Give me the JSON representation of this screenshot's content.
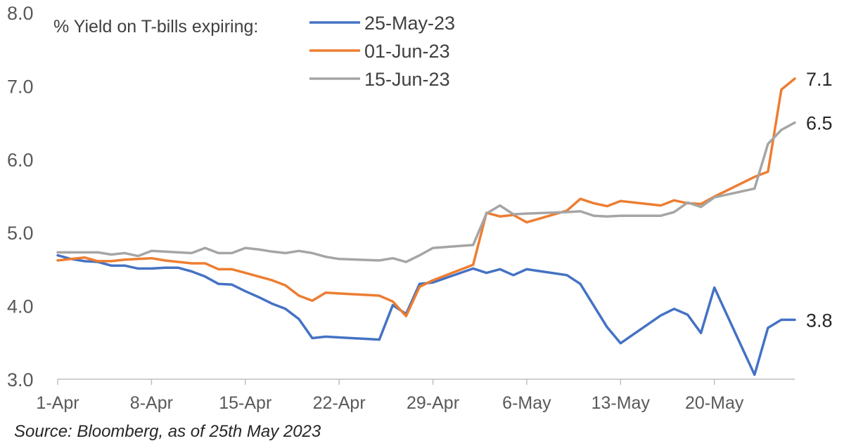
{
  "chart_data": {
    "type": "line",
    "legend_title": "% Yield on T-bills expiring:",
    "source": "Source: Bloomberg, as of 25th May 2023",
    "ylim": [
      3.0,
      8.0
    ],
    "yticks": [
      "3.0",
      "4.0",
      "5.0",
      "6.0",
      "7.0",
      "8.0"
    ],
    "ytick_values": [
      3.0,
      4.0,
      5.0,
      6.0,
      7.0,
      8.0
    ],
    "xlim": [
      1,
      56
    ],
    "xticks": [
      "1-Apr",
      "8-Apr",
      "15-Apr",
      "22-Apr",
      "29-Apr",
      "6-May",
      "13-May",
      "20-May"
    ],
    "xtick_values": [
      1,
      8,
      15,
      22,
      29,
      36,
      43,
      50
    ],
    "legend_position": "top",
    "grid": false,
    "series": [
      {
        "name": "25-May-23",
        "color": "#4472C4",
        "end_label": "3.8",
        "x": [
          1,
          2,
          3,
          4,
          5,
          6,
          7,
          8,
          9,
          10,
          11,
          12,
          13,
          14,
          15,
          16,
          17,
          18,
          19,
          20,
          21,
          22,
          25,
          26,
          27,
          28,
          29,
          32,
          33,
          34,
          35,
          36,
          39,
          40,
          42,
          43,
          46,
          47,
          48,
          49,
          50,
          53,
          54,
          55,
          56
        ],
        "y": [
          4.69,
          4.64,
          4.61,
          4.6,
          4.55,
          4.55,
          4.51,
          4.51,
          4.52,
          4.52,
          4.47,
          4.4,
          4.3,
          4.29,
          4.2,
          4.12,
          4.03,
          3.96,
          3.82,
          3.56,
          3.58,
          3.57,
          3.54,
          4.01,
          3.89,
          4.3,
          4.32,
          4.51,
          4.45,
          4.5,
          4.42,
          4.5,
          4.42,
          4.3,
          3.71,
          3.49,
          3.87,
          3.96,
          3.88,
          3.63,
          4.25,
          3.06,
          3.7,
          3.81,
          3.81
        ]
      },
      {
        "name": "01-Jun-23",
        "color": "#ED7D31",
        "end_label": "7.1",
        "x": [
          1,
          2,
          3,
          4,
          5,
          6,
          7,
          8,
          9,
          10,
          11,
          12,
          13,
          14,
          15,
          16,
          17,
          18,
          19,
          20,
          21,
          22,
          25,
          26,
          27,
          28,
          29,
          32,
          33,
          34,
          35,
          36,
          39,
          40,
          41,
          42,
          43,
          46,
          47,
          48,
          49,
          50,
          53,
          54,
          55,
          56
        ],
        "y": [
          4.62,
          4.64,
          4.66,
          4.61,
          4.61,
          4.63,
          4.64,
          4.65,
          4.62,
          4.6,
          4.58,
          4.58,
          4.5,
          4.5,
          4.45,
          4.4,
          4.35,
          4.28,
          4.14,
          4.07,
          4.18,
          4.17,
          4.14,
          4.06,
          3.86,
          4.26,
          4.35,
          4.56,
          5.27,
          5.22,
          5.24,
          5.14,
          5.3,
          5.46,
          5.4,
          5.36,
          5.43,
          5.37,
          5.44,
          5.4,
          5.39,
          5.49,
          5.76,
          5.83,
          6.95,
          7.1
        ]
      },
      {
        "name": "15-Jun-23",
        "color": "#A5A5A5",
        "end_label": "6.5",
        "x": [
          1,
          2,
          3,
          4,
          5,
          6,
          7,
          8,
          9,
          10,
          11,
          12,
          13,
          14,
          15,
          16,
          17,
          18,
          19,
          20,
          21,
          22,
          25,
          26,
          27,
          28,
          29,
          32,
          33,
          34,
          35,
          36,
          39,
          40,
          41,
          42,
          43,
          46,
          47,
          48,
          49,
          50,
          53,
          54,
          55,
          56
        ],
        "y": [
          4.73,
          4.73,
          4.73,
          4.73,
          4.7,
          4.72,
          4.68,
          4.75,
          4.74,
          4.73,
          4.72,
          4.79,
          4.72,
          4.72,
          4.79,
          4.77,
          4.74,
          4.72,
          4.75,
          4.72,
          4.67,
          4.64,
          4.62,
          4.65,
          4.6,
          4.69,
          4.79,
          4.83,
          5.26,
          5.37,
          5.25,
          5.26,
          5.28,
          5.29,
          5.23,
          5.22,
          5.23,
          5.23,
          5.28,
          5.41,
          5.35,
          5.48,
          5.6,
          6.21,
          6.4,
          6.5
        ]
      }
    ]
  }
}
